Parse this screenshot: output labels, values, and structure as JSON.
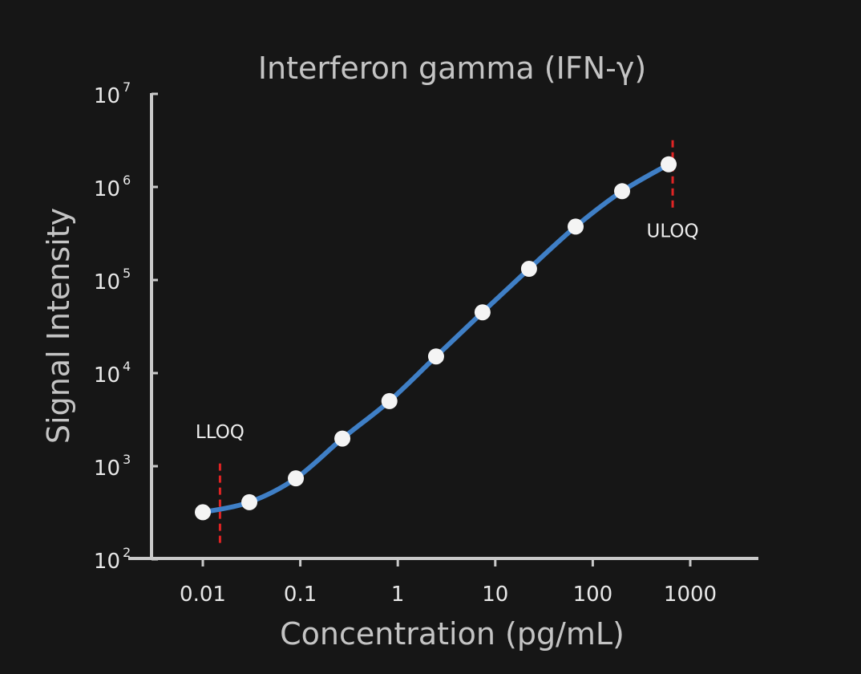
{
  "chart_data": {
    "type": "line",
    "title": "Interferon gamma (IFN-γ)",
    "xlabel": "Concentration (pg/mL)",
    "ylabel": "Signal Intensity",
    "x_scale": "log",
    "y_scale": "log",
    "xlim": [
      0.0033,
      7000
    ],
    "ylim": [
      100,
      10000000
    ],
    "x_ticks": [
      {
        "value": 0.01,
        "label": "0.01"
      },
      {
        "value": 0.1,
        "label": "0.1"
      },
      {
        "value": 1,
        "label": "1"
      },
      {
        "value": 10,
        "label": "10"
      },
      {
        "value": 100,
        "label": "100"
      },
      {
        "value": 1000,
        "label": "1000"
      }
    ],
    "y_ticks": [
      {
        "value": 100,
        "base": "10",
        "exp": "2"
      },
      {
        "value": 1000,
        "base": "10",
        "exp": "3"
      },
      {
        "value": 10000,
        "base": "10",
        "exp": "4"
      },
      {
        "value": 100000,
        "base": "10",
        "exp": "5"
      },
      {
        "value": 1000000,
        "base": "10",
        "exp": "6"
      },
      {
        "value": 10000000,
        "base": "10",
        "exp": "7"
      }
    ],
    "grid": false,
    "series": [
      {
        "color": "#3f7fc6",
        "points": [
          {
            "x": 0.01,
            "y": 320
          },
          {
            "x": 0.03,
            "y": 410
          },
          {
            "x": 0.09,
            "y": 740
          },
          {
            "x": 0.27,
            "y": 1980
          },
          {
            "x": 0.82,
            "y": 5000
          },
          {
            "x": 2.47,
            "y": 15100
          },
          {
            "x": 7.4,
            "y": 45000
          },
          {
            "x": 22.2,
            "y": 132000
          },
          {
            "x": 66.7,
            "y": 375000
          },
          {
            "x": 200,
            "y": 900000
          },
          {
            "x": 600,
            "y": 1750000
          }
        ]
      }
    ],
    "annotations": [
      {
        "label": "LLOQ",
        "x": 0.015,
        "y_range": [
          150,
          1100
        ],
        "label_y": 2000,
        "color": "#e02424"
      },
      {
        "label": "ULOQ",
        "x": 660,
        "y_range": [
          600000,
          3400000
        ],
        "label_y": 290000,
        "color": "#e02424"
      }
    ]
  }
}
